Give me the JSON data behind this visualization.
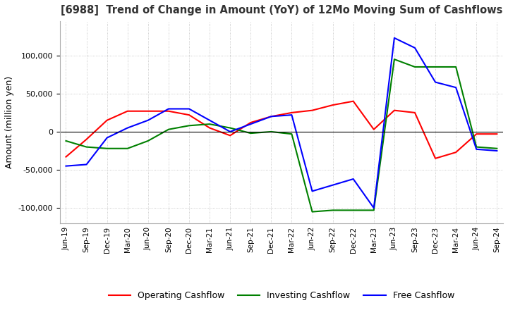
{
  "title": "[6988]  Trend of Change in Amount (YoY) of 12Mo Moving Sum of Cashflows",
  "ylabel": "Amount (million yen)",
  "ylim": [
    -120000,
    145000
  ],
  "yticks": [
    -100000,
    -50000,
    0,
    50000,
    100000
  ],
  "x_labels": [
    "Jun-19",
    "Sep-19",
    "Dec-19",
    "Mar-20",
    "Jun-20",
    "Sep-20",
    "Dec-20",
    "Mar-21",
    "Jun-21",
    "Sep-21",
    "Dec-21",
    "Mar-22",
    "Jun-22",
    "Sep-22",
    "Dec-22",
    "Mar-23",
    "Jun-23",
    "Sep-23",
    "Dec-23",
    "Mar-24",
    "Jun-24",
    "Sep-24"
  ],
  "operating": [
    -33000,
    -10000,
    15000,
    27000,
    27000,
    27000,
    22000,
    5000,
    -5000,
    12000,
    20000,
    25000,
    28000,
    35000,
    40000,
    3000,
    28000,
    25000,
    -35000,
    -27000,
    -3000,
    -3000
  ],
  "investing": [
    -12000,
    -20000,
    -22000,
    -22000,
    -12000,
    3000,
    8000,
    10000,
    5000,
    -2000,
    0,
    -3000,
    -105000,
    -103000,
    -103000,
    -103000,
    95000,
    85000,
    85000,
    85000,
    -20000,
    -22000
  ],
  "free": [
    -45000,
    -43000,
    -8000,
    5000,
    15000,
    30000,
    30000,
    15000,
    0,
    10000,
    20000,
    22000,
    -78000,
    -70000,
    -62000,
    -100000,
    123000,
    110000,
    65000,
    58000,
    -23000,
    -25000
  ],
  "op_color": "#ff0000",
  "inv_color": "#008000",
  "free_color": "#0000ff",
  "bg_color": "#ffffff",
  "grid_color": "#bbbbbb"
}
